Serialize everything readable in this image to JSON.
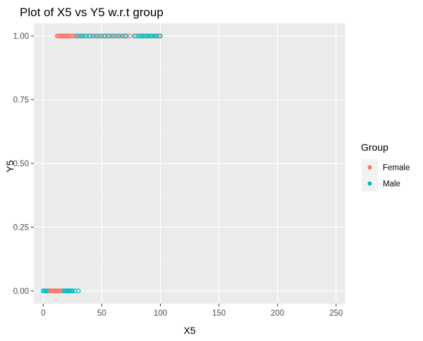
{
  "chart_data": {
    "type": "scatter",
    "title": "Plot of X5 vs Y5 w.r.t group",
    "xlabel": "X5",
    "ylabel": "Y5",
    "xlim": [
      -8,
      258
    ],
    "ylim": [
      -0.05,
      1.05
    ],
    "x_ticks": [
      0,
      50,
      100,
      150,
      200,
      250
    ],
    "x_tick_labels": [
      "0",
      "50",
      "100",
      "150",
      "200",
      "250"
    ],
    "y_ticks": [
      0,
      0.25,
      0.5,
      0.75,
      1
    ],
    "y_tick_labels": [
      "0.00",
      "0.25",
      "0.50",
      "0.75",
      "1.00"
    ],
    "grid": true,
    "legend": {
      "title": "Group",
      "placement": "right",
      "entries": [
        "Female",
        "Male"
      ]
    },
    "series": [
      {
        "name": "Female",
        "color": "#F8766D",
        "marker": "hollow-circle",
        "points": [
          {
            "x": 4,
            "y": 0
          },
          {
            "x": 5,
            "y": 0
          },
          {
            "x": 6,
            "y": 0
          },
          {
            "x": 7,
            "y": 0
          },
          {
            "x": 8,
            "y": 0
          },
          {
            "x": 9,
            "y": 0
          },
          {
            "x": 10,
            "y": 0
          },
          {
            "x": 11,
            "y": 0
          },
          {
            "x": 12,
            "y": 0
          },
          {
            "x": 13,
            "y": 0
          },
          {
            "x": 14,
            "y": 0
          },
          {
            "x": 15,
            "y": 0
          },
          {
            "x": 16,
            "y": 0
          },
          {
            "x": 17,
            "y": 0
          },
          {
            "x": 18,
            "y": 0
          },
          {
            "x": 12,
            "y": 1
          },
          {
            "x": 13,
            "y": 1
          },
          {
            "x": 14,
            "y": 1
          },
          {
            "x": 15,
            "y": 1
          },
          {
            "x": 16,
            "y": 1
          },
          {
            "x": 17,
            "y": 1
          },
          {
            "x": 18,
            "y": 1
          },
          {
            "x": 19,
            "y": 1
          },
          {
            "x": 20,
            "y": 1
          },
          {
            "x": 21,
            "y": 1
          },
          {
            "x": 22,
            "y": 1
          },
          {
            "x": 24,
            "y": 1
          },
          {
            "x": 26,
            "y": 1
          },
          {
            "x": 28,
            "y": 1
          },
          {
            "x": 30,
            "y": 1
          },
          {
            "x": 33,
            "y": 1
          },
          {
            "x": 36,
            "y": 1
          },
          {
            "x": 40,
            "y": 1
          },
          {
            "x": 44,
            "y": 1
          },
          {
            "x": 48,
            "y": 1
          },
          {
            "x": 52,
            "y": 1
          },
          {
            "x": 55,
            "y": 1
          },
          {
            "x": 58,
            "y": 1
          },
          {
            "x": 62,
            "y": 1
          },
          {
            "x": 66,
            "y": 1
          },
          {
            "x": 70,
            "y": 1
          },
          {
            "x": 74,
            "y": 1
          },
          {
            "x": 79,
            "y": 1
          },
          {
            "x": 84,
            "y": 1
          },
          {
            "x": 88,
            "y": 1
          },
          {
            "x": 92,
            "y": 1
          },
          {
            "x": 96,
            "y": 1
          },
          {
            "x": 99,
            "y": 1
          }
        ]
      },
      {
        "name": "Male",
        "color": "#00BFC4",
        "marker": "hollow-circle",
        "points": [
          {
            "x": 0,
            "y": 0
          },
          {
            "x": 1,
            "y": 0
          },
          {
            "x": 2,
            "y": 0
          },
          {
            "x": 3,
            "y": 0
          },
          {
            "x": 18,
            "y": 0
          },
          {
            "x": 19,
            "y": 0
          },
          {
            "x": 20,
            "y": 0
          },
          {
            "x": 21,
            "y": 0
          },
          {
            "x": 22,
            "y": 0
          },
          {
            "x": 23,
            "y": 0
          },
          {
            "x": 24,
            "y": 0
          },
          {
            "x": 25,
            "y": 0
          },
          {
            "x": 27,
            "y": 0
          },
          {
            "x": 30,
            "y": 0
          },
          {
            "x": 29,
            "y": 1
          },
          {
            "x": 32,
            "y": 1
          },
          {
            "x": 34,
            "y": 1
          },
          {
            "x": 37,
            "y": 1
          },
          {
            "x": 39,
            "y": 1
          },
          {
            "x": 42,
            "y": 1
          },
          {
            "x": 46,
            "y": 1
          },
          {
            "x": 50,
            "y": 1
          },
          {
            "x": 53,
            "y": 1
          },
          {
            "x": 56,
            "y": 1
          },
          {
            "x": 60,
            "y": 1
          },
          {
            "x": 64,
            "y": 1
          },
          {
            "x": 68,
            "y": 1
          },
          {
            "x": 71,
            "y": 1
          },
          {
            "x": 78,
            "y": 1
          },
          {
            "x": 81,
            "y": 1
          },
          {
            "x": 83,
            "y": 1
          },
          {
            "x": 85,
            "y": 1
          },
          {
            "x": 87,
            "y": 1
          },
          {
            "x": 89,
            "y": 1
          },
          {
            "x": 91,
            "y": 1
          },
          {
            "x": 93,
            "y": 1
          },
          {
            "x": 95,
            "y": 1
          },
          {
            "x": 97,
            "y": 1
          },
          {
            "x": 100,
            "y": 1
          }
        ]
      }
    ]
  }
}
